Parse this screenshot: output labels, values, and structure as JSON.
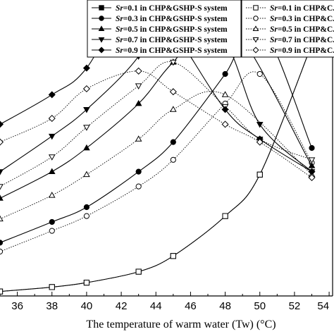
{
  "chart_data": {
    "type": "line",
    "xlabel": "The temperature of warm water (Tw)  (°C)",
    "xticks": [
      36,
      38,
      40,
      42,
      44,
      46,
      48,
      50,
      52,
      54
    ],
    "xlim": [
      35,
      54.2
    ],
    "ylim": [
      0,
      100
    ],
    "grid": false,
    "legend_position": "top",
    "series": [
      {
        "name": "Sr=0.1 in CHP&GSHP-S system",
        "group": "CHP&GSHP-S",
        "marker": "square",
        "filled": true,
        "style": "solid",
        "x": [
          35,
          38,
          40,
          43,
          45,
          48,
          50,
          53
        ],
        "y": [
          1.5,
          3.0,
          4.5,
          8.2,
          13.5,
          27,
          41,
          85
        ]
      },
      {
        "name": "Sr=0.1 in CHP&C...",
        "group": "CHP&C",
        "marker": "square",
        "filled": false,
        "style": "dotted",
        "x": [
          35,
          38,
          40,
          43,
          45,
          48,
          50,
          53
        ],
        "y": [
          1.5,
          3.0,
          4.5,
          8.2,
          13.5,
          27,
          41,
          85
        ]
      },
      {
        "name": "Sr=0.3 in CHP&GSHP-S system",
        "group": "CHP&GSHP-S",
        "marker": "circle",
        "filled": true,
        "style": "solid",
        "x": [
          35,
          38,
          40,
          43,
          45,
          48,
          50,
          53
        ],
        "y": [
          18,
          25,
          30,
          42,
          52,
          75,
          92,
          50
        ]
      },
      {
        "name": "Sr=0.3 in CHP&C...",
        "group": "CHP&C",
        "marker": "circle",
        "filled": false,
        "style": "dotted",
        "x": [
          35,
          38,
          40,
          43,
          45,
          48,
          50,
          53
        ],
        "y": [
          15,
          22,
          27,
          37,
          46,
          65,
          75,
          45
        ]
      },
      {
        "name": "Sr=0.5 in CHP&GSHP-S system",
        "group": "CHP&GSHP-S",
        "marker": "triangle-up",
        "filled": true,
        "style": "solid",
        "x": [
          35,
          38,
          40,
          43,
          45,
          48,
          53
        ],
        "y": [
          33,
          42,
          50,
          65,
          79,
          94,
          44
        ]
      },
      {
        "name": "Sr=0.5 in CHP&C...",
        "group": "CHP&C",
        "marker": "triangle-up",
        "filled": false,
        "style": "dotted",
        "x": [
          35,
          38,
          40,
          43,
          45,
          48,
          53
        ],
        "y": [
          26,
          34,
          41,
          53,
          63,
          68,
          41
        ]
      },
      {
        "name": "Sr=0.7 in CHP&GSHP-S system",
        "group": "CHP&GSHP-S",
        "marker": "triangle-down",
        "filled": true,
        "style": "solid",
        "x": [
          35,
          38,
          40,
          43,
          45,
          48,
          50,
          53
        ],
        "y": [
          42,
          54,
          63,
          81,
          103,
          86,
          58,
          42
        ]
      },
      {
        "name": "Sr=0.7 in CHP&C...",
        "group": "CHP&C",
        "marker": "triangle-down",
        "filled": false,
        "style": "dotted",
        "x": [
          35,
          38,
          40,
          43,
          45,
          48,
          50,
          53
        ],
        "y": [
          37,
          47,
          57,
          71,
          79,
          64,
          53,
          46
        ]
      },
      {
        "name": "Sr=0.9 in CHP&GSHP-S system",
        "group": "CHP&GSHP-S",
        "marker": "diamond",
        "filled": true,
        "style": "solid",
        "x": [
          35,
          38,
          40,
          43,
          45,
          48,
          50,
          53
        ],
        "y": [
          58,
          68,
          77,
          105,
          90,
          63,
          53,
          42
        ]
      },
      {
        "name": "Sr=0.9 in CHP&C...",
        "group": "CHP&C",
        "marker": "diamond",
        "filled": false,
        "style": "dotted",
        "x": [
          35,
          38,
          40,
          43,
          45,
          48,
          50,
          53
        ],
        "y": [
          52,
          60,
          70,
          76,
          69,
          58,
          52,
          40
        ]
      }
    ]
  }
}
